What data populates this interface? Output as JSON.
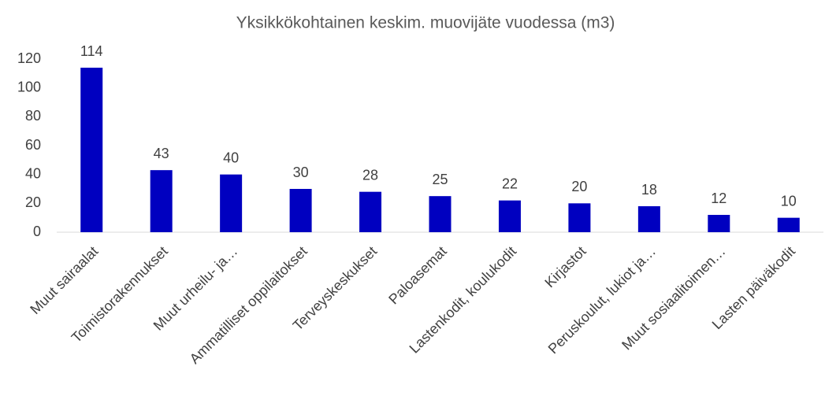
{
  "chart_data": {
    "type": "bar",
    "title": "Yksikkökohtainen keskim. muovijäte vuodessa (m3)",
    "categories": [
      "Muut sairaalat",
      "Toimistorakennukset",
      "Muut urheilu- ja…",
      "Ammatilliset oppilaitokset",
      "Terveyskeskukset",
      "Paloasemat",
      "Lastenkodit, koulukodit",
      "Kirjastot",
      "Peruskoulut, lukiot ja…",
      "Muut sosiaalitoimen…",
      "Lasten päiväkodit"
    ],
    "values": [
      114,
      43,
      40,
      30,
      28,
      25,
      22,
      20,
      18,
      12,
      10
    ],
    "color": "#0000c0",
    "ylim": [
      0,
      120
    ],
    "yticks": [
      0,
      20,
      40,
      60,
      80,
      100,
      120
    ],
    "grid": false
  }
}
